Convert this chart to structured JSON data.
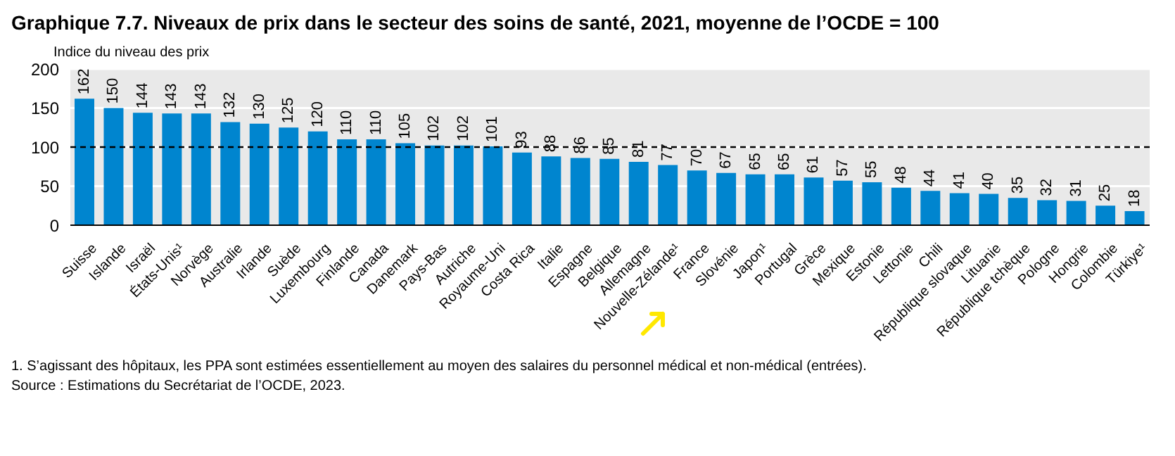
{
  "chart_data": {
    "type": "bar",
    "title": "Graphique 7.7. Niveaux de prix dans le secteur des soins de santé, 2021, moyenne de l’OCDE = 100",
    "ylabel": "Indice du niveau des prix",
    "categories": [
      "Suisse",
      "Islande",
      "Israël",
      "États-Unis¹",
      "Norvège",
      "Australie",
      "Irlande",
      "Suède",
      "Luxembourg",
      "Finlande",
      "Canada",
      "Danemark",
      "Pays-Bas",
      "Autriche",
      "Royaume-Uni",
      "Costa Rica",
      "Italie",
      "Espagne",
      "Belgique",
      "Allemagne",
      "Nouvelle-Zélande¹",
      "France",
      "Slovénie",
      "Japon¹",
      "Portugal",
      "Grèce",
      "Mexique",
      "Estonie",
      "Lettonie",
      "Chili",
      "République slovaque",
      "Lituanie",
      "République tchèque",
      "Pologne",
      "Hongrie",
      "Colombie",
      "Türkiye¹"
    ],
    "values": [
      162,
      150,
      144,
      143,
      143,
      132,
      130,
      125,
      120,
      110,
      110,
      105,
      102,
      102,
      101,
      93,
      88,
      86,
      85,
      81,
      77,
      70,
      67,
      65,
      65,
      61,
      57,
      55,
      48,
      44,
      41,
      40,
      35,
      32,
      31,
      25,
      18
    ],
    "color": "#0085cf",
    "ylim": [
      0,
      200
    ],
    "yticks": [
      0,
      50,
      100,
      150,
      200
    ],
    "grid": "y",
    "legend": false,
    "data_labels": true,
    "ref_lines": [
      {
        "axis": "y",
        "value": 100,
        "line_style": "dashed",
        "color": "#000000"
      }
    ],
    "annotations": [
      "1. S’agissant des hôpitaux, les PPA sont estimées essentiellement au moyen des salaires du personnel médical et non-médical (entrées).",
      "Source : Estimations du Secrétariat de l’OCDE, 2023."
    ]
  }
}
